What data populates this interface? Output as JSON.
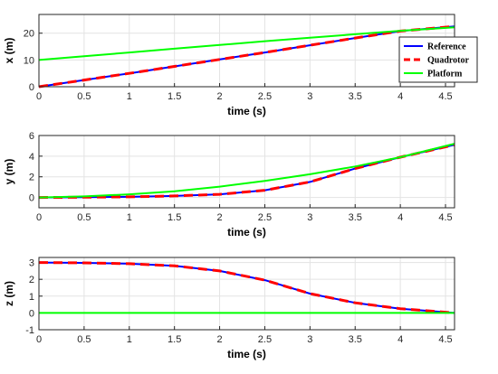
{
  "chart_data": [
    {
      "type": "line",
      "xlabel": "time (s)",
      "ylabel": "x (m)",
      "xlim": [
        0,
        4.6
      ],
      "ylim": [
        0,
        27
      ],
      "xticks": [
        "0",
        "0.5",
        "1",
        "1.5",
        "2",
        "2.5",
        "3",
        "3.5",
        "4",
        "4.5"
      ],
      "yticks": [
        "0",
        "10",
        "20"
      ],
      "grid": true,
      "legend": {
        "placement": "right",
        "entries": [
          "Reference",
          "Quadrotor",
          "Platform"
        ]
      },
      "series": [
        {
          "name": "Reference",
          "color": "#0000ff",
          "style": "solid",
          "x": [
            0,
            0.5,
            1,
            1.5,
            2,
            2.5,
            3,
            3.5,
            4,
            4.6
          ],
          "y": [
            0,
            2.5,
            5,
            7.6,
            10.2,
            12.8,
            15.5,
            18.2,
            20.8,
            22.5
          ]
        },
        {
          "name": "Quadrotor",
          "color": "#ff0000",
          "style": "dashed",
          "x": [
            0,
            0.5,
            1,
            1.5,
            2,
            2.5,
            3,
            3.5,
            4,
            4.6
          ],
          "y": [
            0,
            2.5,
            5,
            7.6,
            10.2,
            12.8,
            15.5,
            18.2,
            20.8,
            22.5
          ]
        },
        {
          "name": "Platform",
          "color": "#00ff00",
          "style": "solid",
          "x": [
            0,
            0.5,
            1,
            1.5,
            2,
            2.5,
            3,
            3.5,
            4,
            4.6
          ],
          "y": [
            10,
            11.4,
            12.8,
            14.2,
            15.6,
            17,
            18.3,
            19.6,
            20.9,
            22.2
          ]
        }
      ]
    },
    {
      "type": "line",
      "xlabel": "time (s)",
      "ylabel": "y (m)",
      "xlim": [
        0,
        4.6
      ],
      "ylim": [
        -1,
        6
      ],
      "xticks": [
        "0",
        "0.5",
        "1",
        "1.5",
        "2",
        "2.5",
        "3",
        "3.5",
        "4",
        "4.5"
      ],
      "yticks": [
        "0",
        "2",
        "4",
        "6"
      ],
      "grid": true,
      "series": [
        {
          "name": "Reference",
          "color": "#0000ff",
          "style": "solid",
          "x": [
            0,
            0.5,
            1,
            1.5,
            2,
            2.5,
            3,
            3.5,
            4,
            4.6
          ],
          "y": [
            0,
            0.02,
            0.06,
            0.15,
            0.3,
            0.7,
            1.5,
            2.8,
            3.9,
            5.1
          ]
        },
        {
          "name": "Quadrotor",
          "color": "#ff0000",
          "style": "dashed",
          "x": [
            0,
            0.5,
            1,
            1.5,
            2,
            2.5,
            3,
            3.5,
            4,
            4.6
          ],
          "y": [
            0,
            0.02,
            0.06,
            0.15,
            0.3,
            0.7,
            1.5,
            2.8,
            3.9,
            5.1
          ]
        },
        {
          "name": "Platform",
          "color": "#00ff00",
          "style": "solid",
          "x": [
            0,
            0.5,
            1,
            1.5,
            2,
            2.5,
            3,
            3.5,
            4,
            4.6
          ],
          "y": [
            0,
            0.1,
            0.3,
            0.6,
            1.05,
            1.6,
            2.25,
            3.0,
            3.9,
            5.2
          ]
        }
      ]
    },
    {
      "type": "line",
      "xlabel": "time (s)",
      "ylabel": "z (m)",
      "xlim": [
        0,
        4.6
      ],
      "ylim": [
        -1,
        3.3
      ],
      "xticks": [
        "0",
        "0.5",
        "1",
        "1.5",
        "2",
        "2.5",
        "3",
        "3.5",
        "4",
        "4.5"
      ],
      "yticks": [
        "-1",
        "0",
        "1",
        "2",
        "3"
      ],
      "grid": true,
      "series": [
        {
          "name": "Reference",
          "color": "#0000ff",
          "style": "solid",
          "x": [
            0,
            0.5,
            1,
            1.5,
            2,
            2.5,
            3,
            3.5,
            4,
            4.6
          ],
          "y": [
            3.0,
            2.98,
            2.93,
            2.8,
            2.5,
            1.95,
            1.15,
            0.6,
            0.25,
            0.0
          ]
        },
        {
          "name": "Quadrotor",
          "color": "#ff0000",
          "style": "dashed",
          "x": [
            0,
            0.5,
            1,
            1.5,
            2,
            2.5,
            3,
            3.5,
            4,
            4.6
          ],
          "y": [
            3.0,
            2.98,
            2.93,
            2.8,
            2.5,
            1.95,
            1.15,
            0.6,
            0.25,
            0.0
          ]
        },
        {
          "name": "Platform",
          "color": "#00ff00",
          "style": "solid",
          "x": [
            0,
            0.5,
            1,
            1.5,
            2,
            2.5,
            3,
            3.5,
            4,
            4.6
          ],
          "y": [
            0,
            0,
            0,
            0,
            0,
            0,
            0,
            0,
            0,
            0
          ]
        }
      ]
    }
  ]
}
